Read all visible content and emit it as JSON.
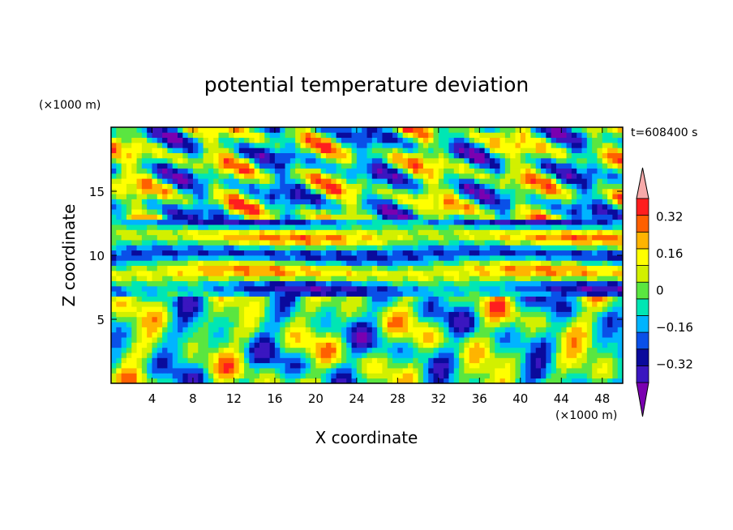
{
  "chart_data": {
    "type": "heatmap",
    "title": "potential temperature deviation",
    "xlabel": "X coordinate",
    "ylabel": "Z coordinate",
    "x_unit": "(×1000 m)",
    "y_unit": "(×1000 m)",
    "time_label": "t=608400 s",
    "xlim": [
      0,
      50
    ],
    "ylim": [
      0,
      20
    ],
    "x_ticks": [
      4,
      8,
      12,
      16,
      20,
      24,
      28,
      32,
      36,
      40,
      44,
      48
    ],
    "y_ticks": [
      5,
      10,
      15
    ],
    "colorbar": {
      "levels": [
        -0.4,
        -0.32,
        -0.24,
        -0.16,
        -0.08,
        0,
        0.08,
        0.16,
        0.24,
        0.32,
        0.4
      ],
      "labels": [
        {
          "value": 0.32,
          "text": "0.32"
        },
        {
          "value": 0.16,
          "text": "0.16"
        },
        {
          "value": 0,
          "text": "0"
        },
        {
          "value": -0.16,
          "text": "−0.16"
        },
        {
          "value": -0.32,
          "text": "−0.32"
        }
      ],
      "colors": [
        "#7a00b0",
        "#3a16c0",
        "#0a0a9c",
        "#0a50e8",
        "#00b4ff",
        "#00e6b4",
        "#5ae640",
        "#d2f000",
        "#ffff00",
        "#ffb400",
        "#ff6000",
        "#ff1e1e",
        "#f7aaaa"
      ],
      "extend": "both"
    }
  }
}
